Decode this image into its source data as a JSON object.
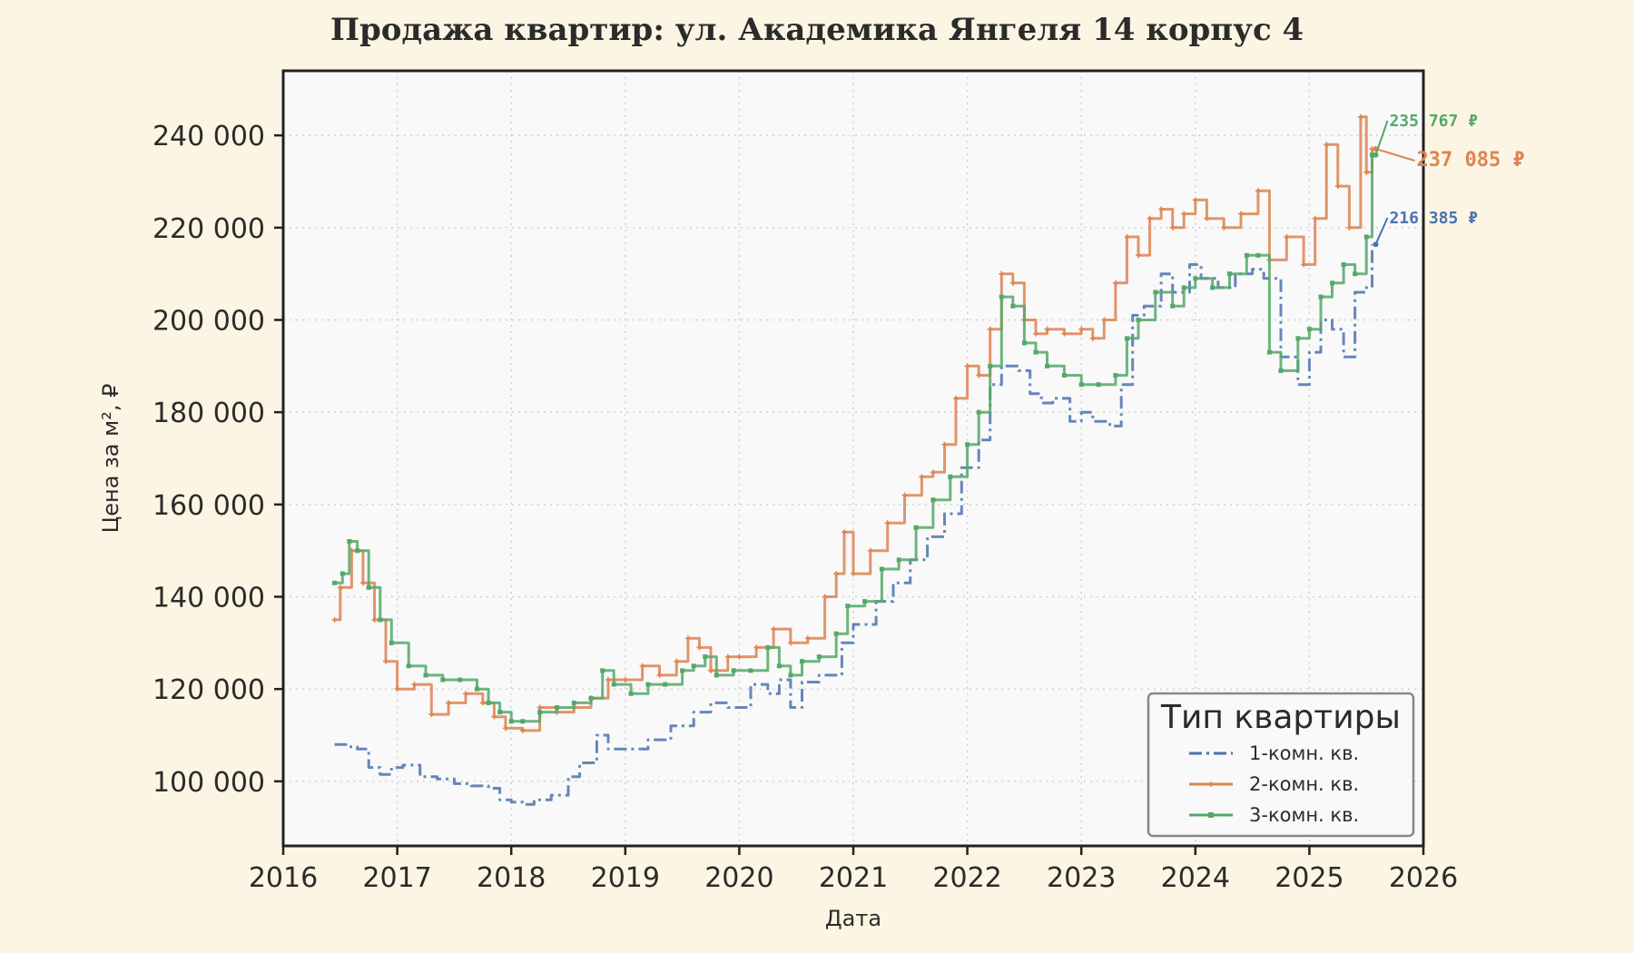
{
  "chart_data": {
    "type": "line",
    "title": "Продажа квартир: ул. Академика Янгеля 14 корпус 4",
    "xlabel": "Дата",
    "ylabel": "Цена за м², ₽",
    "xlim": [
      2016,
      2026
    ],
    "ylim": [
      86000,
      254000
    ],
    "x_ticks": [
      2016,
      2017,
      2018,
      2019,
      2020,
      2021,
      2022,
      2023,
      2024,
      2025,
      2026
    ],
    "x_tick_labels": [
      "2016",
      "2017",
      "2018",
      "2019",
      "2020",
      "2021",
      "2022",
      "2023",
      "2024",
      "2025",
      "2026"
    ],
    "y_ticks": [
      100000,
      120000,
      140000,
      160000,
      180000,
      200000,
      220000,
      240000
    ],
    "y_tick_labels": [
      "100 000",
      "120 000",
      "140 000",
      "160 000",
      "180 000",
      "200 000",
      "220 000",
      "240 000"
    ],
    "grid": true,
    "legend": {
      "title": "Тип квартиры",
      "position": "bottom-right"
    },
    "series": [
      {
        "name": "1-комн. кв.",
        "color": "#4c72b0",
        "dash": "dashdot",
        "marker": "none",
        "x": [
          2016.45,
          2016.55,
          2016.65,
          2016.75,
          2016.85,
          2016.95,
          2017.05,
          2017.2,
          2017.35,
          2017.5,
          2017.65,
          2017.8,
          2017.9,
          2018.0,
          2018.1,
          2018.2,
          2018.35,
          2018.5,
          2018.6,
          2018.75,
          2018.85,
          2019.0,
          2019.2,
          2019.4,
          2019.6,
          2019.75,
          2019.9,
          2020.1,
          2020.25,
          2020.35,
          2020.45,
          2020.55,
          2020.7,
          2020.9,
          2021.0,
          2021.2,
          2021.35,
          2021.5,
          2021.65,
          2021.8,
          2021.95,
          2022.1,
          2022.2,
          2022.3,
          2022.45,
          2022.55,
          2022.65,
          2022.75,
          2022.9,
          2023.0,
          2023.1,
          2023.25,
          2023.35,
          2023.45,
          2023.55,
          2023.7,
          2023.8,
          2023.95,
          2024.05,
          2024.2,
          2024.35,
          2024.5,
          2024.6,
          2024.75,
          2024.9,
          2025.0,
          2025.1,
          2025.2,
          2025.3,
          2025.4,
          2025.5,
          2025.55
        ],
        "y": [
          108000,
          107500,
          107000,
          103000,
          101500,
          103000,
          103500,
          101000,
          100500,
          99500,
          99000,
          98500,
          96000,
          95500,
          95000,
          96000,
          97000,
          101000,
          104000,
          110000,
          107000,
          107000,
          109000,
          112000,
          115000,
          117000,
          116000,
          121000,
          119000,
          122000,
          116000,
          121500,
          123000,
          130000,
          134000,
          139000,
          143000,
          148000,
          153000,
          158000,
          168000,
          174000,
          186000,
          190000,
          189000,
          184000,
          182000,
          183000,
          178000,
          180000,
          178000,
          177000,
          186000,
          201000,
          203000,
          210000,
          206000,
          212000,
          209000,
          207000,
          210000,
          211000,
          209000,
          192000,
          186000,
          193000,
          200000,
          198000,
          192000,
          206000,
          207000,
          216385
        ]
      },
      {
        "name": "2-комн. кв.",
        "color": "#dd8452",
        "dash": "solid",
        "marker": "plus",
        "x": [
          2016.45,
          2016.5,
          2016.6,
          2016.7,
          2016.8,
          2016.9,
          2017.0,
          2017.15,
          2017.3,
          2017.45,
          2017.6,
          2017.75,
          2017.85,
          2017.95,
          2018.1,
          2018.25,
          2018.4,
          2018.55,
          2018.7,
          2018.85,
          2019.0,
          2019.15,
          2019.3,
          2019.45,
          2019.55,
          2019.65,
          2019.75,
          2019.9,
          2020.0,
          2020.15,
          2020.3,
          2020.45,
          2020.6,
          2020.75,
          2020.85,
          2020.92,
          2021.0,
          2021.15,
          2021.3,
          2021.45,
          2021.6,
          2021.7,
          2021.8,
          2021.9,
          2022.0,
          2022.1,
          2022.2,
          2022.3,
          2022.4,
          2022.5,
          2022.6,
          2022.7,
          2022.85,
          2023.0,
          2023.1,
          2023.2,
          2023.3,
          2023.4,
          2023.5,
          2023.6,
          2023.7,
          2023.8,
          2023.9,
          2024.0,
          2024.1,
          2024.25,
          2024.4,
          2024.55,
          2024.65,
          2024.8,
          2024.95,
          2025.05,
          2025.15,
          2025.25,
          2025.35,
          2025.45,
          2025.5,
          2025.55
        ],
        "y": [
          135000,
          142000,
          150000,
          143000,
          135000,
          126000,
          120000,
          121000,
          114500,
          117000,
          119000,
          117000,
          114000,
          111500,
          111000,
          116000,
          115000,
          116000,
          118000,
          122000,
          122000,
          125000,
          123000,
          126000,
          131000,
          129000,
          124000,
          127000,
          127000,
          129000,
          133000,
          130000,
          131000,
          140000,
          145000,
          154000,
          145000,
          150000,
          156000,
          162000,
          166000,
          167000,
          173000,
          183000,
          190000,
          188000,
          198000,
          210000,
          208000,
          200000,
          197000,
          198000,
          197000,
          198000,
          196000,
          200000,
          208000,
          218000,
          214000,
          222000,
          224000,
          220000,
          223000,
          226000,
          222000,
          220000,
          223000,
          228000,
          213000,
          218000,
          212000,
          222000,
          238000,
          229000,
          220000,
          244000,
          232000,
          237085
        ]
      },
      {
        "name": "3-комн. кв.",
        "color": "#55a868",
        "dash": "solid",
        "marker": "square",
        "x": [
          2016.45,
          2016.52,
          2016.58,
          2016.65,
          2016.75,
          2016.85,
          2016.95,
          2017.1,
          2017.25,
          2017.4,
          2017.55,
          2017.7,
          2017.8,
          2017.9,
          2018.0,
          2018.1,
          2018.25,
          2018.4,
          2018.55,
          2018.7,
          2018.8,
          2018.9,
          2019.05,
          2019.2,
          2019.35,
          2019.5,
          2019.6,
          2019.7,
          2019.8,
          2019.95,
          2020.1,
          2020.25,
          2020.35,
          2020.45,
          2020.55,
          2020.7,
          2020.85,
          2020.95,
          2021.1,
          2021.25,
          2021.4,
          2021.55,
          2021.7,
          2021.85,
          2022.0,
          2022.1,
          2022.2,
          2022.3,
          2022.4,
          2022.5,
          2022.6,
          2022.7,
          2022.85,
          2023.0,
          2023.15,
          2023.3,
          2023.4,
          2023.5,
          2023.65,
          2023.8,
          2023.9,
          2024.0,
          2024.15,
          2024.3,
          2024.45,
          2024.55,
          2024.65,
          2024.75,
          2024.9,
          2025.0,
          2025.1,
          2025.2,
          2025.3,
          2025.4,
          2025.5,
          2025.55
        ],
        "y": [
          143000,
          145000,
          152000,
          150000,
          142000,
          135000,
          130000,
          125000,
          123000,
          122000,
          122000,
          120000,
          117000,
          115000,
          113000,
          113000,
          115000,
          116000,
          117000,
          118000,
          124000,
          121000,
          119000,
          121000,
          121000,
          124000,
          125000,
          127000,
          123000,
          124000,
          124000,
          129000,
          125000,
          123000,
          126000,
          127000,
          132000,
          138000,
          139000,
          146000,
          148000,
          155000,
          161000,
          166000,
          173000,
          180000,
          190000,
          205000,
          203000,
          195000,
          193000,
          190000,
          188000,
          186000,
          186000,
          188000,
          196000,
          200000,
          206000,
          203000,
          207000,
          209000,
          207000,
          210000,
          214000,
          214000,
          193000,
          189000,
          196000,
          198000,
          205000,
          208000,
          212000,
          210000,
          218000,
          235767
        ]
      }
    ],
    "annotations": [
      {
        "series": 0,
        "text": "216 385 ₽"
      },
      {
        "series": 1,
        "text": "237 085 ₽"
      },
      {
        "series": 2,
        "text": "235 767 ₽"
      }
    ]
  }
}
